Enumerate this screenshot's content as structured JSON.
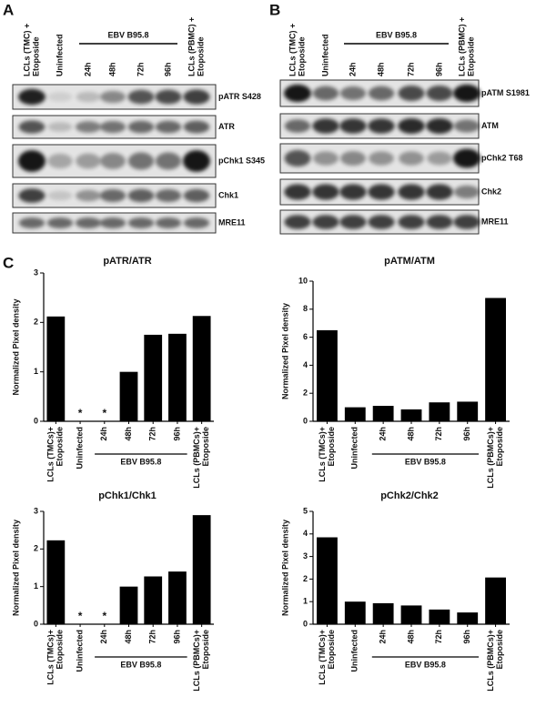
{
  "panels": [
    {
      "label": "A",
      "group": "EBV B95.8",
      "lanes": [
        [
          "LCLs (TMC) +",
          "Etoposide"
        ],
        [
          "Uninfected"
        ],
        [
          "24h"
        ],
        [
          "48h"
        ],
        [
          "72h"
        ],
        [
          "96h"
        ],
        [
          "LCLs (PBMC) +",
          "Etoposide"
        ]
      ],
      "blots": [
        "pATR S428",
        "ATR",
        "pChk1 S345",
        "Chk1",
        "MRE11"
      ]
    },
    {
      "label": "B",
      "group": "EBV B95.8",
      "lanes": [
        [
          "LCLs (TMC) +",
          "Etoposide"
        ],
        [
          "Uninfected"
        ],
        [
          "24h"
        ],
        [
          "48h"
        ],
        [
          "72h"
        ],
        [
          "96h"
        ],
        [
          "LCLs (PBMC) +",
          "Etoposide"
        ]
      ],
      "blots": [
        "pATM S1981",
        "ATM",
        "pChk2 T68",
        "Chk2",
        "MRE11"
      ]
    },
    {
      "label": "C"
    }
  ],
  "chart_data": [
    {
      "type": "bar",
      "title": "pATR/ATR",
      "y_label": "Normalized Pixel density",
      "color": "#000000",
      "categories": [
        [
          "LCLs (TMCs)+",
          "Etoposide"
        ],
        [
          "Uninfected"
        ],
        [
          "24h"
        ],
        [
          "48h"
        ],
        [
          "72h"
        ],
        [
          "96h"
        ],
        [
          "LCLs (PBMCs)+",
          "Etoposide"
        ]
      ],
      "values": [
        2.12,
        null,
        null,
        1.0,
        1.75,
        1.77,
        2.13
      ],
      "annotations": [
        {
          "text": "*",
          "x": "Uninfected"
        },
        {
          "text": "*",
          "x": "24h"
        }
      ],
      "group": {
        "label": "EBV B95.8",
        "from": "24h",
        "to": "96h"
      },
      "ylim": [
        0,
        3
      ],
      "yticks": [
        0,
        1,
        2,
        3
      ]
    },
    {
      "type": "bar",
      "title": "pATM/ATM",
      "y_label": "Normalized Pixel density",
      "color": "#000000",
      "categories": [
        [
          "LCLs (TMCs)+",
          "Etoposide"
        ],
        [
          "Uninfected"
        ],
        [
          "24h"
        ],
        [
          "48h"
        ],
        [
          "72h"
        ],
        [
          "96h"
        ],
        [
          "LCLs (PBMCs)+",
          "Etoposide"
        ]
      ],
      "values": [
        6.5,
        1.0,
        1.1,
        0.85,
        1.35,
        1.4,
        8.8
      ],
      "group": {
        "label": "EBV B95.8",
        "from": "24h",
        "to": "96h"
      },
      "ylim": [
        0,
        10
      ],
      "yticks": [
        0,
        2,
        4,
        6,
        8,
        10
      ]
    },
    {
      "type": "bar",
      "title": "pChk1/Chk1",
      "y_label": "Normalized Pixel density",
      "color": "#000000",
      "categories": [
        [
          "LCLs (TMCs)+",
          "Etoposide"
        ],
        [
          "Uninfected"
        ],
        [
          "24h"
        ],
        [
          "48h"
        ],
        [
          "72h"
        ],
        [
          "96h"
        ],
        [
          "LCLs (PBMCs)+",
          "Etoposide"
        ]
      ],
      "values": [
        2.23,
        null,
        null,
        1.0,
        1.27,
        1.4,
        2.9
      ],
      "annotations": [
        {
          "text": "*",
          "x": "Uninfected"
        },
        {
          "text": "*",
          "x": "24h"
        }
      ],
      "group": {
        "label": "EBV B95.8",
        "from": "24h",
        "to": "96h"
      },
      "ylim": [
        0,
        3
      ],
      "yticks": [
        0,
        1,
        2,
        3
      ]
    },
    {
      "type": "bar",
      "title": "pChk2/Chk2",
      "y_label": "Normalized Pixel density",
      "color": "#000000",
      "categories": [
        [
          "LCLs (TMCs)+",
          "Etoposide"
        ],
        [
          "Uninfected"
        ],
        [
          "24h"
        ],
        [
          "48h"
        ],
        [
          "72h"
        ],
        [
          "96h"
        ],
        [
          "LCLs (PBMCs)+",
          "Etoposide"
        ]
      ],
      "values": [
        3.85,
        1.0,
        0.93,
        0.83,
        0.65,
        0.52,
        2.07
      ],
      "group": {
        "label": "EBV B95.8",
        "from": "24h",
        "to": "96h"
      },
      "ylim": [
        0,
        5
      ],
      "yticks": [
        0,
        1,
        2,
        3,
        4,
        5
      ]
    }
  ]
}
